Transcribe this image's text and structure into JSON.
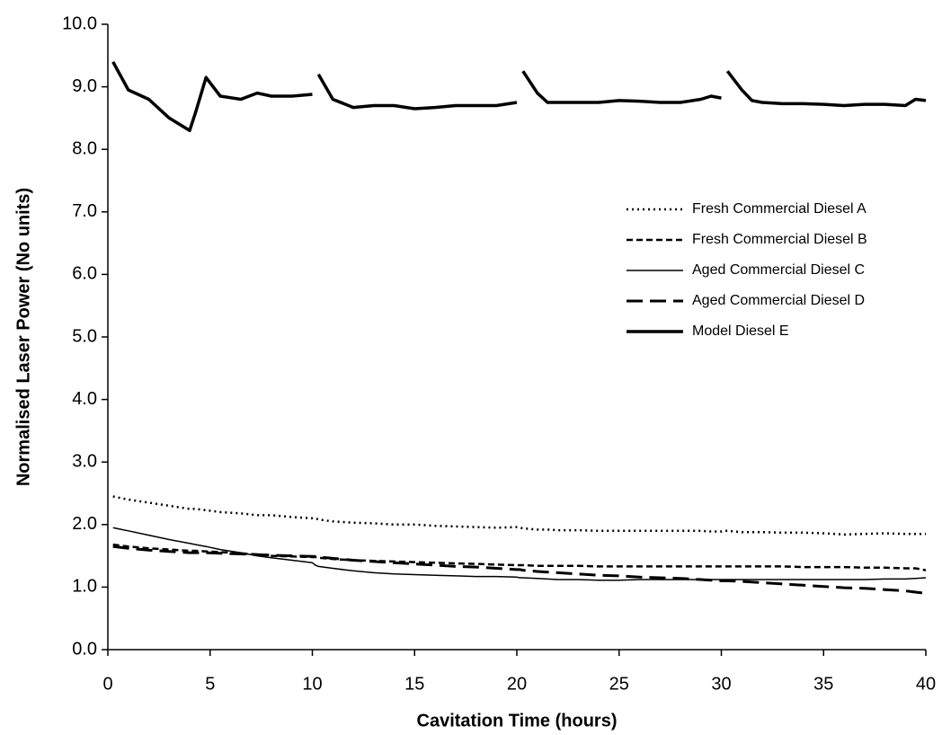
{
  "chart_data": {
    "type": "line",
    "xlabel": "Cavitation Time (hours)",
    "ylabel": "Normalised Laser Power (No units)",
    "x": [
      0.25,
      1,
      2,
      3,
      4,
      4.3,
      4.8,
      5.5,
      6.5,
      7.3,
      8,
      9,
      10,
      10.15,
      10.3,
      11,
      12,
      13,
      14,
      15,
      16,
      17,
      18,
      19,
      20,
      20.15,
      20.3,
      21,
      21.5,
      22,
      23,
      24,
      25,
      26,
      27,
      28,
      29,
      29.5,
      30,
      30.15,
      30.3,
      31,
      31.5,
      32,
      33,
      34,
      35,
      36,
      37,
      38,
      39,
      39.5,
      40
    ],
    "series": [
      {
        "name": "Fresh Commercial Diesel A",
        "color": "#000000",
        "dash": "dotted",
        "width": 2.5,
        "values": [
          2.45,
          2.4,
          2.35,
          2.3,
          2.25,
          2.25,
          2.23,
          2.2,
          2.18,
          2.15,
          2.15,
          2.12,
          2.1,
          2.1,
          2.08,
          2.05,
          2.03,
          2.02,
          2.0,
          2.0,
          1.98,
          1.97,
          1.96,
          1.95,
          1.96,
          1.95,
          1.94,
          1.92,
          1.92,
          1.91,
          1.91,
          1.9,
          1.9,
          1.9,
          1.9,
          1.9,
          1.9,
          1.89,
          1.89,
          1.9,
          1.9,
          1.88,
          1.88,
          1.88,
          1.87,
          1.87,
          1.86,
          1.84,
          1.85,
          1.86,
          1.85,
          1.85,
          1.85
        ]
      },
      {
        "name": "Fresh Commercial Diesel B",
        "color": "#000000",
        "dash": "dashed",
        "width": 2.5,
        "values": [
          1.68,
          1.65,
          1.62,
          1.6,
          1.58,
          1.58,
          1.57,
          1.56,
          1.54,
          1.52,
          1.5,
          1.49,
          1.48,
          1.48,
          1.47,
          1.45,
          1.43,
          1.42,
          1.41,
          1.4,
          1.39,
          1.38,
          1.37,
          1.36,
          1.35,
          1.35,
          1.35,
          1.34,
          1.34,
          1.34,
          1.34,
          1.33,
          1.33,
          1.33,
          1.33,
          1.33,
          1.33,
          1.33,
          1.33,
          1.33,
          1.33,
          1.33,
          1.33,
          1.33,
          1.33,
          1.32,
          1.32,
          1.32,
          1.31,
          1.31,
          1.3,
          1.3,
          1.27
        ]
      },
      {
        "name": "Aged Commercial Diesel C",
        "color": "#000000",
        "dash": "solid",
        "width": 1.5,
        "values": [
          1.95,
          1.9,
          1.83,
          1.76,
          1.7,
          1.68,
          1.65,
          1.6,
          1.55,
          1.5,
          1.47,
          1.43,
          1.39,
          1.35,
          1.33,
          1.3,
          1.26,
          1.23,
          1.21,
          1.2,
          1.19,
          1.18,
          1.17,
          1.17,
          1.16,
          1.15,
          1.15,
          1.14,
          1.13,
          1.12,
          1.12,
          1.11,
          1.11,
          1.12,
          1.12,
          1.12,
          1.12,
          1.12,
          1.12,
          1.12,
          1.12,
          1.12,
          1.12,
          1.12,
          1.12,
          1.12,
          1.12,
          1.12,
          1.12,
          1.13,
          1.13,
          1.14,
          1.15
        ]
      },
      {
        "name": "Aged Commercial Diesel D",
        "color": "#000000",
        "dash": "longdash",
        "width": 3,
        "values": [
          1.65,
          1.62,
          1.59,
          1.57,
          1.55,
          1.55,
          1.55,
          1.54,
          1.53,
          1.52,
          1.51,
          1.5,
          1.49,
          1.49,
          1.48,
          1.46,
          1.43,
          1.41,
          1.39,
          1.37,
          1.35,
          1.33,
          1.32,
          1.3,
          1.28,
          1.28,
          1.27,
          1.25,
          1.24,
          1.23,
          1.21,
          1.19,
          1.18,
          1.16,
          1.15,
          1.14,
          1.12,
          1.11,
          1.1,
          1.1,
          1.1,
          1.09,
          1.08,
          1.07,
          1.05,
          1.03,
          1.01,
          0.99,
          0.98,
          0.96,
          0.94,
          0.92,
          0.9
        ]
      },
      {
        "name": "Model Diesel E",
        "color": "#000000",
        "dash": "solid",
        "width": 3.5,
        "values": [
          9.4,
          8.95,
          8.8,
          8.5,
          8.3,
          8.6,
          9.15,
          8.85,
          8.8,
          8.9,
          8.85,
          8.85,
          8.88,
          null,
          9.2,
          8.8,
          8.67,
          8.7,
          8.7,
          8.65,
          8.67,
          8.7,
          8.7,
          8.7,
          8.75,
          null,
          9.25,
          8.9,
          8.75,
          8.75,
          8.75,
          8.75,
          8.78,
          8.77,
          8.75,
          8.75,
          8.8,
          8.85,
          8.82,
          null,
          9.25,
          8.95,
          8.78,
          8.75,
          8.73,
          8.73,
          8.72,
          8.7,
          8.72,
          8.72,
          8.7,
          8.8,
          8.78
        ]
      }
    ],
    "xlim": [
      0,
      40
    ],
    "xticks": [
      0,
      5,
      10,
      15,
      20,
      25,
      30,
      35,
      40
    ],
    "ylim": [
      0,
      10
    ],
    "yticks": [
      {
        "value": 0,
        "label": "0.0"
      },
      {
        "value": 1,
        "label": "1.0"
      },
      {
        "value": 2,
        "label": "2.0"
      },
      {
        "value": 3,
        "label": "3.0"
      },
      {
        "value": 4,
        "label": "4.0"
      },
      {
        "value": 5,
        "label": "5.0"
      },
      {
        "value": 6,
        "label": "6.0"
      },
      {
        "value": 7,
        "label": "7.0"
      },
      {
        "value": 8,
        "label": "8.0"
      },
      {
        "value": 9,
        "label": "9.0"
      },
      {
        "value": 10,
        "label": "10.0"
      }
    ],
    "grid": false,
    "legend": "right"
  }
}
